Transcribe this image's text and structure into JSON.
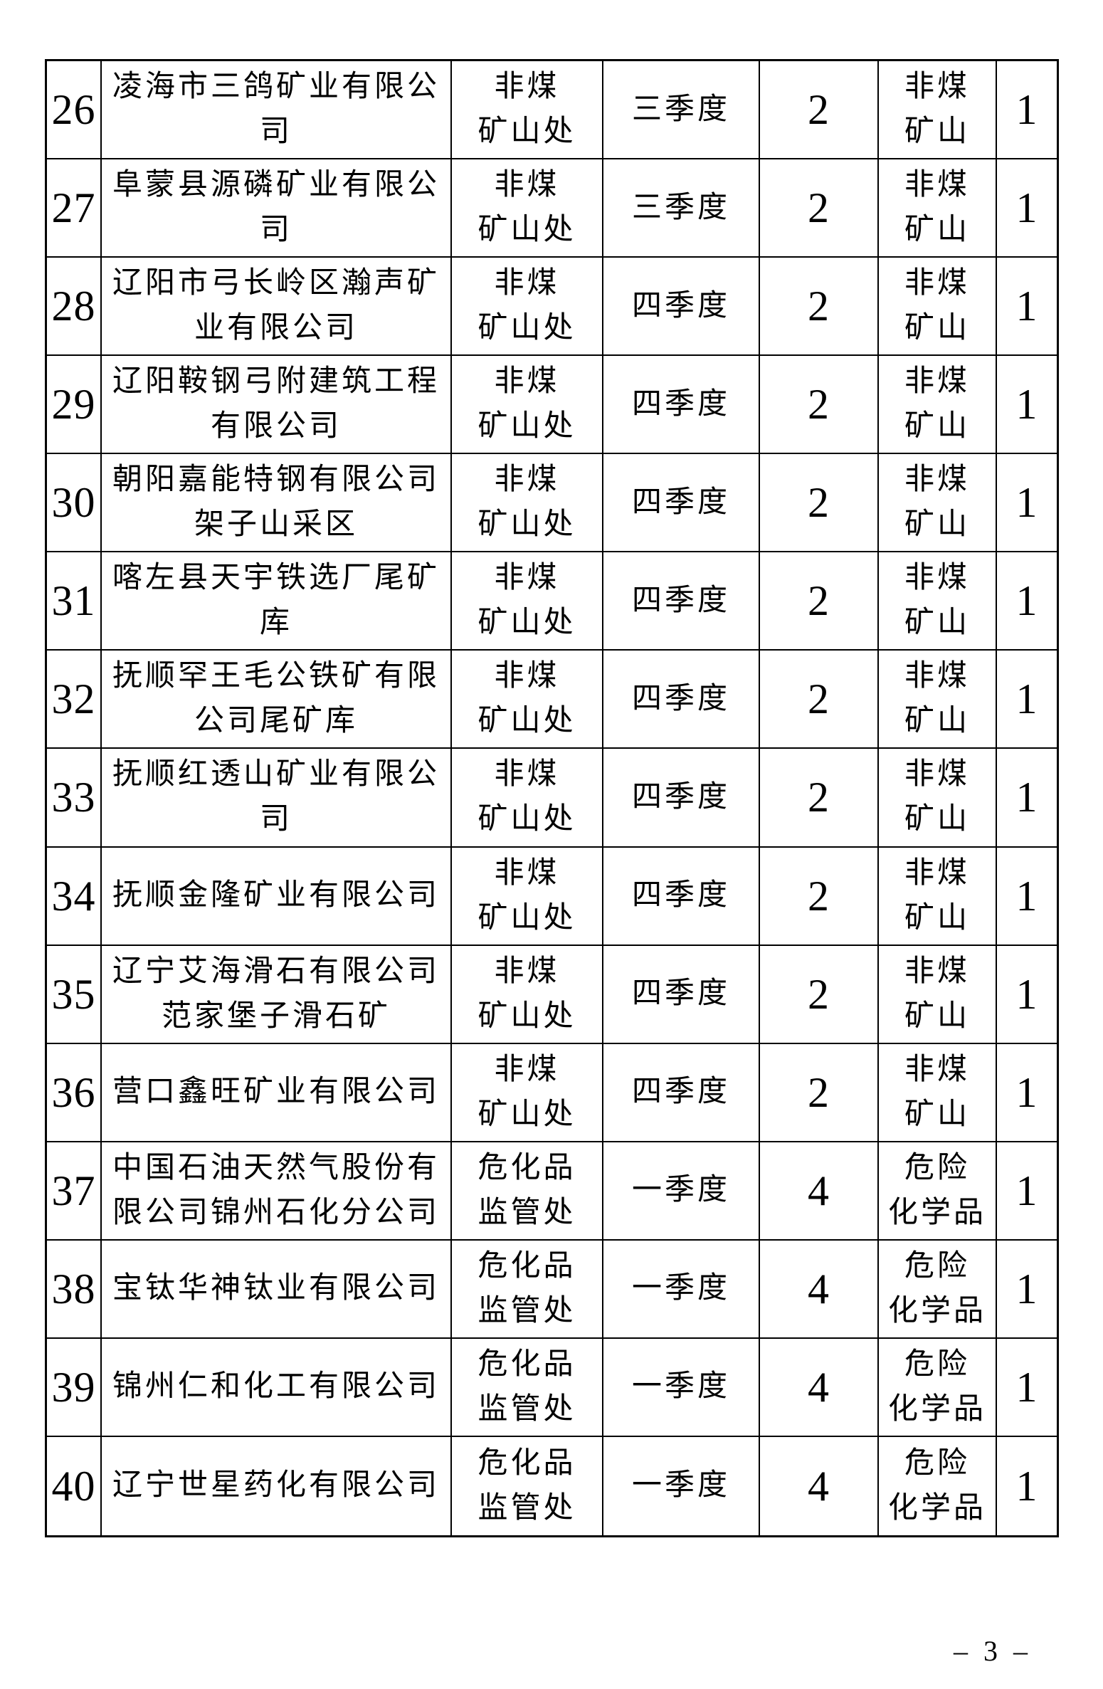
{
  "page": {
    "footer": "– 3 –"
  },
  "table": {
    "rows": [
      {
        "no": "26",
        "company": [
          "凌海市三鸽矿业有限公",
          "司"
        ],
        "department": [
          "非煤",
          "矿山处"
        ],
        "quarter": "三季度",
        "times": "2",
        "category": [
          "非煤",
          "矿山"
        ],
        "frequency": "1"
      },
      {
        "no": "27",
        "company": [
          "阜蒙县源磷矿业有限公",
          "司"
        ],
        "department": [
          "非煤",
          "矿山处"
        ],
        "quarter": "三季度",
        "times": "2",
        "category": [
          "非煤",
          "矿山"
        ],
        "frequency": "1"
      },
      {
        "no": "28",
        "company": [
          "辽阳市弓长岭区瀚声矿",
          "业有限公司"
        ],
        "department": [
          "非煤",
          "矿山处"
        ],
        "quarter": "四季度",
        "times": "2",
        "category": [
          "非煤",
          "矿山"
        ],
        "frequency": "1"
      },
      {
        "no": "29",
        "company": [
          "辽阳鞍钢弓附建筑工程",
          "有限公司"
        ],
        "department": [
          "非煤",
          "矿山处"
        ],
        "quarter": "四季度",
        "times": "2",
        "category": [
          "非煤",
          "矿山"
        ],
        "frequency": "1"
      },
      {
        "no": "30",
        "company": [
          "朝阳嘉能特钢有限公司",
          "架子山采区"
        ],
        "department": [
          "非煤",
          "矿山处"
        ],
        "quarter": "四季度",
        "times": "2",
        "category": [
          "非煤",
          "矿山"
        ],
        "frequency": "1"
      },
      {
        "no": "31",
        "company": [
          "喀左县天宇铁选厂尾矿",
          "库"
        ],
        "department": [
          "非煤",
          "矿山处"
        ],
        "quarter": "四季度",
        "times": "2",
        "category": [
          "非煤",
          "矿山"
        ],
        "frequency": "1"
      },
      {
        "no": "32",
        "company": [
          "抚顺罕王毛公铁矿有限",
          "公司尾矿库"
        ],
        "department": [
          "非煤",
          "矿山处"
        ],
        "quarter": "四季度",
        "times": "2",
        "category": [
          "非煤",
          "矿山"
        ],
        "frequency": "1"
      },
      {
        "no": "33",
        "company": [
          "抚顺红透山矿业有限公",
          "司"
        ],
        "department": [
          "非煤",
          "矿山处"
        ],
        "quarter": "四季度",
        "times": "2",
        "category": [
          "非煤",
          "矿山"
        ],
        "frequency": "1"
      },
      {
        "no": "34",
        "company": [
          "抚顺金隆矿业有限公司"
        ],
        "department": [
          "非煤",
          "矿山处"
        ],
        "quarter": "四季度",
        "times": "2",
        "category": [
          "非煤",
          "矿山"
        ],
        "frequency": "1"
      },
      {
        "no": "35",
        "company": [
          "辽宁艾海滑石有限公司",
          "范家堡子滑石矿"
        ],
        "department": [
          "非煤",
          "矿山处"
        ],
        "quarter": "四季度",
        "times": "2",
        "category": [
          "非煤",
          "矿山"
        ],
        "frequency": "1"
      },
      {
        "no": "36",
        "company": [
          "营口鑫旺矿业有限公司"
        ],
        "department": [
          "非煤",
          "矿山处"
        ],
        "quarter": "四季度",
        "times": "2",
        "category": [
          "非煤",
          "矿山"
        ],
        "frequency": "1"
      },
      {
        "no": "37",
        "company": [
          "中国石油天然气股份有",
          "限公司锦州石化分公司"
        ],
        "department": [
          "危化品",
          "监管处"
        ],
        "quarter": "一季度",
        "times": "4",
        "category": [
          "危险",
          "化学品"
        ],
        "frequency": "1"
      },
      {
        "no": "38",
        "company": [
          "宝钛华神钛业有限公司"
        ],
        "department": [
          "危化品",
          "监管处"
        ],
        "quarter": "一季度",
        "times": "4",
        "category": [
          "危险",
          "化学品"
        ],
        "frequency": "1"
      },
      {
        "no": "39",
        "company": [
          "锦州仁和化工有限公司"
        ],
        "department": [
          "危化品",
          "监管处"
        ],
        "quarter": "一季度",
        "times": "4",
        "category": [
          "危险",
          "化学品"
        ],
        "frequency": "1"
      },
      {
        "no": "40",
        "company": [
          "辽宁世星药化有限公司"
        ],
        "department": [
          "危化品",
          "监管处"
        ],
        "quarter": "一季度",
        "times": "4",
        "category": [
          "危险",
          "化学品"
        ],
        "frequency": "1"
      }
    ]
  }
}
